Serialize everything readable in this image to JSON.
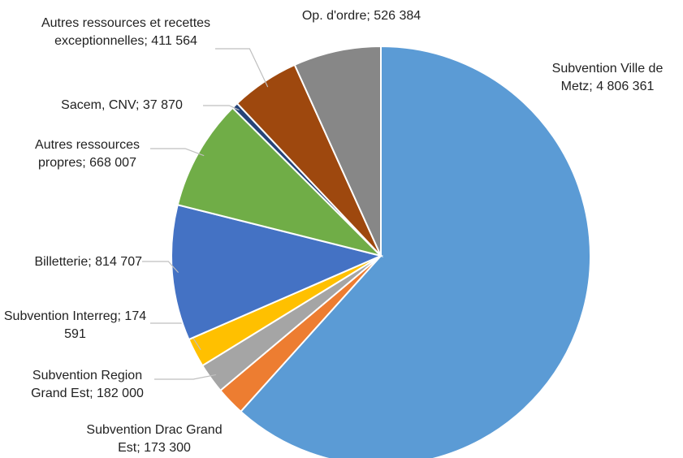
{
  "chart_data": {
    "type": "pie",
    "categories": [
      "Subvention Ville de Metz",
      "Subvention Drac Grand Est",
      "Subvention Region Grand Est",
      "Subvention Interreg",
      "Billetterie",
      "Autres ressources propres",
      "Sacem, CNV",
      "Autres ressources et recettes exceptionnelles",
      "Op. d'ordre"
    ],
    "values": [
      4806361,
      173300,
      182000,
      174591,
      814707,
      668007,
      37870,
      411564,
      526384
    ],
    "value_labels": [
      "4 806 361",
      "173 300",
      "182 000",
      "174 591",
      "814 707",
      "668 007",
      "37 870",
      "411 564",
      "526 384"
    ],
    "separator": "; ",
    "colors": [
      "#5b9bd5",
      "#ed7d31",
      "#a5a5a5",
      "#ffc000",
      "#4472c4",
      "#70ad47",
      "#264478",
      "#9e480e",
      "#878787"
    ]
  }
}
